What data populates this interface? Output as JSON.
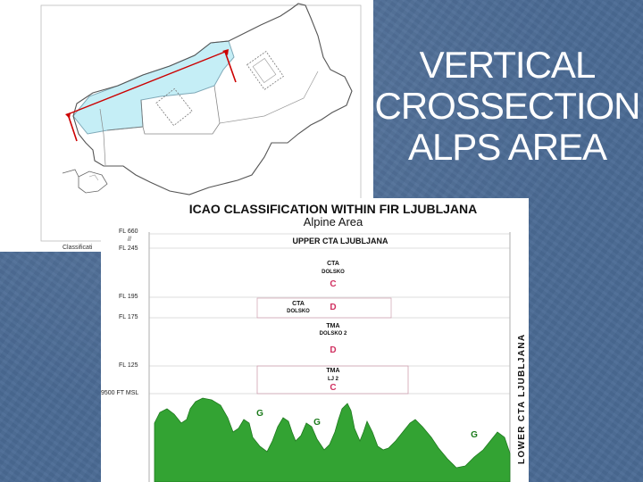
{
  "slide": {
    "title_lines": [
      "VERTICAL",
      "CROSSECTION",
      "ALPS AREA"
    ]
  },
  "map": {
    "caption": "Classificati",
    "section_line_color": "#cc0000",
    "highlight_color": "#c5eef6"
  },
  "cross_section": {
    "title": "ICAO CLASSIFICATION WITHIN FIR LJUBLJANA",
    "subtitle": "Alpine Area",
    "flight_levels": {
      "fl660": "FL 660",
      "slash": "//",
      "fl245": "FL 245",
      "fl195": "FL 195",
      "fl175": "FL 175",
      "fl125": "FL 125",
      "ft9500": "9500 FT MSL"
    },
    "zones": {
      "upper": "UPPER CTA LJUBLJANA",
      "cta_dolsko_high": {
        "name": "CTA",
        "sub": "DOLSKO",
        "class": "C"
      },
      "cta_dolsko_low": {
        "name": "CTA",
        "sub": "DOLSKO",
        "class": "D"
      },
      "tma_dolsko2": {
        "name": "TMA",
        "sub": "DOLSKO 2",
        "class": "D"
      },
      "tma_lj2": {
        "name": "TMA",
        "sub": "LJ 2",
        "class": "C"
      }
    },
    "terrain_classes": [
      "G",
      "G",
      "G"
    ],
    "lower_label": "LOWER CTA LJUBLJANA",
    "colors": {
      "terrain": "#33a333",
      "class_letter": "#d03060",
      "zone_border": "#d0a0b0"
    }
  }
}
